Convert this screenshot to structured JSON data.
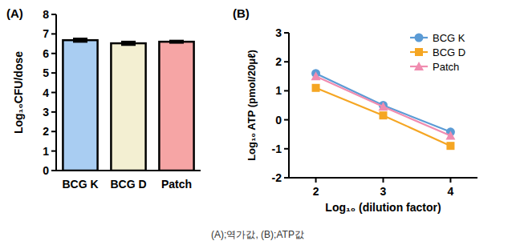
{
  "chart_data": [
    {
      "type": "bar",
      "title": "(A)",
      "y_label": "Log₁₀CFU/dose",
      "categories": [
        "BCG K",
        "BCG D",
        "Patch"
      ],
      "values": [
        6.68,
        6.52,
        6.6
      ],
      "errors": [
        0.08,
        0.08,
        0.05
      ],
      "colors": [
        "#a9cdf2",
        "#f3efd2",
        "#f6a5a5"
      ],
      "ylim": [
        0,
        8
      ],
      "yticks": [
        0,
        1,
        2,
        3,
        4,
        5,
        6,
        7,
        8
      ]
    },
    {
      "type": "line",
      "title": "(B)",
      "x_label": "Log₁₀ (dilution factor)",
      "y_label": "Log₁₀ ATP (pmol/20μℓ)",
      "x": [
        2,
        3,
        4
      ],
      "series": [
        {
          "name": "BCG K",
          "color": "#5b9bd5",
          "marker": "circle",
          "values": [
            1.6,
            0.5,
            -0.42
          ]
        },
        {
          "name": "BCG D",
          "color": "#f5a623",
          "marker": "square",
          "values": [
            1.1,
            0.15,
            -0.9
          ]
        },
        {
          "name": "Patch",
          "color": "#f08cb0",
          "marker": "triangle",
          "values": [
            1.5,
            0.45,
            -0.55
          ]
        }
      ],
      "xlim": [
        1.6,
        4.4
      ],
      "xticks": [
        2,
        3,
        4
      ],
      "ylim": [
        -2,
        3
      ],
      "yticks": [
        -2,
        -1,
        0,
        1,
        2,
        3
      ],
      "legend": "upper right"
    }
  ],
  "caption": "(A);역가값, (B);ATP값"
}
